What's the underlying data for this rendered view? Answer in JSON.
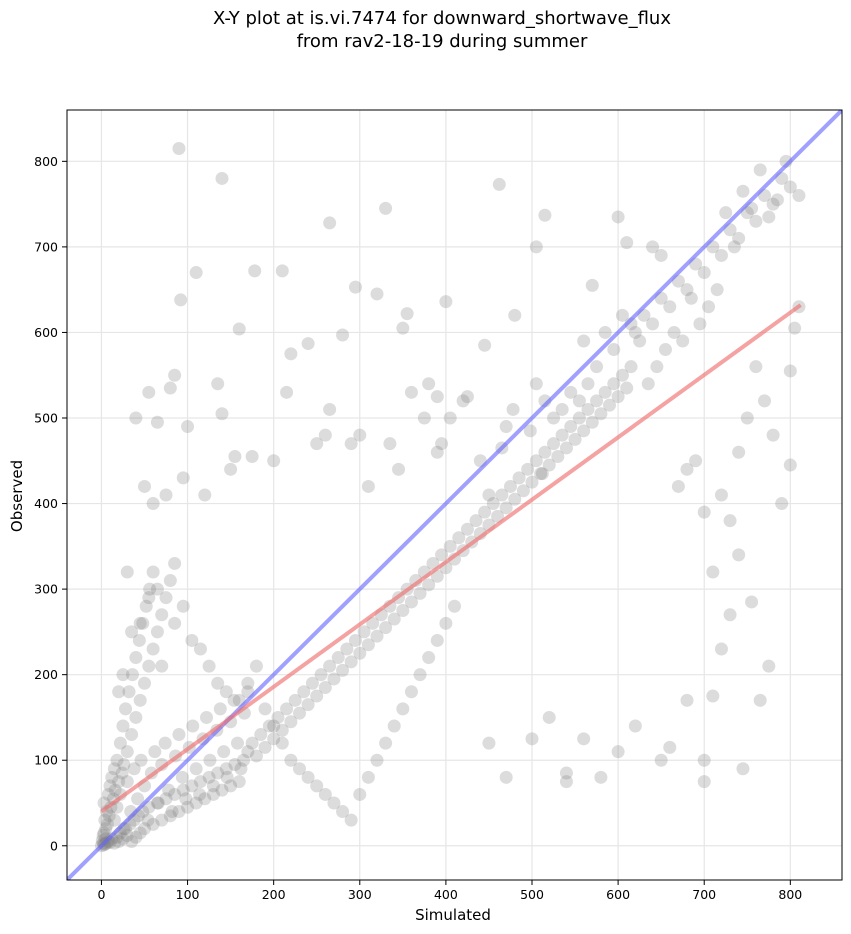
{
  "chart_data": {
    "type": "scatter",
    "title_lines": [
      "X-Y plot at is.vi.7474 for downward_shortwave_flux",
      "from rav2-18-19 during summer"
    ],
    "xlabel": "Simulated",
    "ylabel": "Observed",
    "xlim": [
      -40,
      860
    ],
    "ylim": [
      -40,
      860
    ],
    "xticks": [
      0,
      100,
      200,
      300,
      400,
      500,
      600,
      700,
      800
    ],
    "yticks": [
      0,
      100,
      200,
      300,
      400,
      500,
      600,
      700,
      800
    ],
    "grid": true,
    "point_color": "#808080",
    "one_to_one_line": {
      "x": [
        -40,
        860
      ],
      "y": [
        -40,
        860
      ],
      "color": "#6060ff"
    },
    "regression_line": {
      "x": [
        0,
        812
      ],
      "y": [
        40,
        632
      ],
      "color": "#f07070"
    },
    "points": [
      [
        0,
        0
      ],
      [
        2,
        3
      ],
      [
        3,
        1
      ],
      [
        1,
        6
      ],
      [
        4,
        2
      ],
      [
        5,
        8
      ],
      [
        6,
        3
      ],
      [
        2,
        12
      ],
      [
        8,
        5
      ],
      [
        3,
        15
      ],
      [
        10,
        4
      ],
      [
        5,
        20
      ],
      [
        12,
        8
      ],
      [
        7,
        25
      ],
      [
        15,
        3
      ],
      [
        4,
        30
      ],
      [
        18,
        10
      ],
      [
        9,
        35
      ],
      [
        20,
        5
      ],
      [
        6,
        40
      ],
      [
        22,
        15
      ],
      [
        11,
        45
      ],
      [
        25,
        8
      ],
      [
        3,
        50
      ],
      [
        28,
        20
      ],
      [
        14,
        55
      ],
      [
        30,
        12
      ],
      [
        8,
        60
      ],
      [
        33,
        25
      ],
      [
        16,
        65
      ],
      [
        35,
        5
      ],
      [
        10,
        70
      ],
      [
        38,
        30
      ],
      [
        20,
        75
      ],
      [
        40,
        10
      ],
      [
        12,
        80
      ],
      [
        43,
        35
      ],
      [
        24,
        85
      ],
      [
        45,
        15
      ],
      [
        15,
        90
      ],
      [
        48,
        40
      ],
      [
        26,
        95
      ],
      [
        50,
        20
      ],
      [
        18,
        100
      ],
      [
        55,
        45
      ],
      [
        30,
        110
      ],
      [
        60,
        25
      ],
      [
        22,
        120
      ],
      [
        65,
        50
      ],
      [
        35,
        130
      ],
      [
        70,
        30
      ],
      [
        25,
        140
      ],
      [
        75,
        55
      ],
      [
        40,
        150
      ],
      [
        80,
        35
      ],
      [
        28,
        160
      ],
      [
        85,
        60
      ],
      [
        45,
        170
      ],
      [
        90,
        40
      ],
      [
        32,
        180
      ],
      [
        95,
        65
      ],
      [
        50,
        190
      ],
      [
        100,
        45
      ],
      [
        36,
        200
      ],
      [
        105,
        70
      ],
      [
        55,
        210
      ],
      [
        110,
        50
      ],
      [
        40,
        220
      ],
      [
        115,
        75
      ],
      [
        60,
        230
      ],
      [
        120,
        55
      ],
      [
        44,
        240
      ],
      [
        125,
        80
      ],
      [
        65,
        250
      ],
      [
        130,
        60
      ],
      [
        48,
        260
      ],
      [
        135,
        85
      ],
      [
        70,
        270
      ],
      [
        140,
        65
      ],
      [
        52,
        280
      ],
      [
        145,
        90
      ],
      [
        75,
        290
      ],
      [
        150,
        70
      ],
      [
        56,
        300
      ],
      [
        155,
        95
      ],
      [
        80,
        310
      ],
      [
        160,
        75
      ],
      [
        60,
        320
      ],
      [
        165,
        100
      ],
      [
        85,
        330
      ],
      [
        170,
        110
      ],
      [
        175,
        120
      ],
      [
        180,
        105
      ],
      [
        185,
        130
      ],
      [
        190,
        115
      ],
      [
        195,
        140
      ],
      [
        200,
        125
      ],
      [
        205,
        150
      ],
      [
        210,
        135
      ],
      [
        215,
        160
      ],
      [
        220,
        145
      ],
      [
        225,
        170
      ],
      [
        230,
        155
      ],
      [
        235,
        180
      ],
      [
        240,
        165
      ],
      [
        245,
        190
      ],
      [
        250,
        175
      ],
      [
        255,
        200
      ],
      [
        260,
        185
      ],
      [
        265,
        210
      ],
      [
        270,
        195
      ],
      [
        275,
        220
      ],
      [
        280,
        205
      ],
      [
        285,
        230
      ],
      [
        290,
        215
      ],
      [
        295,
        240
      ],
      [
        300,
        225
      ],
      [
        305,
        250
      ],
      [
        310,
        235
      ],
      [
        315,
        260
      ],
      [
        320,
        245
      ],
      [
        325,
        270
      ],
      [
        330,
        255
      ],
      [
        335,
        280
      ],
      [
        340,
        265
      ],
      [
        345,
        290
      ],
      [
        350,
        275
      ],
      [
        355,
        300
      ],
      [
        360,
        285
      ],
      [
        365,
        310
      ],
      [
        370,
        295
      ],
      [
        375,
        320
      ],
      [
        380,
        305
      ],
      [
        385,
        330
      ],
      [
        390,
        315
      ],
      [
        395,
        340
      ],
      [
        400,
        325
      ],
      [
        405,
        350
      ],
      [
        410,
        335
      ],
      [
        415,
        360
      ],
      [
        420,
        345
      ],
      [
        425,
        370
      ],
      [
        430,
        355
      ],
      [
        435,
        380
      ],
      [
        440,
        365
      ],
      [
        445,
        390
      ],
      [
        450,
        375
      ],
      [
        455,
        400
      ],
      [
        460,
        385
      ],
      [
        465,
        410
      ],
      [
        470,
        395
      ],
      [
        475,
        420
      ],
      [
        480,
        405
      ],
      [
        485,
        430
      ],
      [
        490,
        415
      ],
      [
        495,
        440
      ],
      [
        500,
        425
      ],
      [
        505,
        450
      ],
      [
        510,
        435
      ],
      [
        515,
        460
      ],
      [
        520,
        445
      ],
      [
        525,
        470
      ],
      [
        530,
        455
      ],
      [
        535,
        480
      ],
      [
        540,
        465
      ],
      [
        545,
        490
      ],
      [
        550,
        475
      ],
      [
        555,
        500
      ],
      [
        560,
        485
      ],
      [
        565,
        510
      ],
      [
        570,
        495
      ],
      [
        575,
        520
      ],
      [
        580,
        505
      ],
      [
        585,
        530
      ],
      [
        590,
        515
      ],
      [
        595,
        540
      ],
      [
        600,
        525
      ],
      [
        605,
        550
      ],
      [
        610,
        535
      ],
      [
        615,
        560
      ],
      [
        620,
        600
      ],
      [
        630,
        620
      ],
      [
        640,
        610
      ],
      [
        650,
        640
      ],
      [
        660,
        630
      ],
      [
        670,
        660
      ],
      [
        680,
        650
      ],
      [
        690,
        680
      ],
      [
        700,
        670
      ],
      [
        710,
        700
      ],
      [
        720,
        690
      ],
      [
        730,
        720
      ],
      [
        740,
        710
      ],
      [
        750,
        740
      ],
      [
        760,
        730
      ],
      [
        770,
        760
      ],
      [
        780,
        750
      ],
      [
        790,
        780
      ],
      [
        800,
        770
      ],
      [
        810,
        760
      ],
      [
        765,
        790
      ],
      [
        795,
        800
      ],
      [
        755,
        745
      ],
      [
        785,
        755
      ],
      [
        775,
        735
      ],
      [
        745,
        765
      ],
      [
        735,
        700
      ],
      [
        725,
        740
      ],
      [
        715,
        650
      ],
      [
        705,
        630
      ],
      [
        695,
        610
      ],
      [
        685,
        640
      ],
      [
        675,
        590
      ],
      [
        665,
        600
      ],
      [
        655,
        580
      ],
      [
        645,
        560
      ],
      [
        635,
        540
      ],
      [
        625,
        590
      ],
      [
        615,
        610
      ],
      [
        605,
        620
      ],
      [
        595,
        580
      ],
      [
        585,
        600
      ],
      [
        575,
        560
      ],
      [
        565,
        540
      ],
      [
        555,
        520
      ],
      [
        545,
        530
      ],
      [
        535,
        510
      ],
      [
        525,
        500
      ],
      [
        515,
        520
      ],
      [
        505,
        540
      ],
      [
        90,
        815
      ],
      [
        140,
        780
      ],
      [
        265,
        728
      ],
      [
        330,
        745
      ],
      [
        462,
        773
      ],
      [
        515,
        737
      ],
      [
        600,
        735
      ],
      [
        110,
        670
      ],
      [
        178,
        672
      ],
      [
        210,
        672
      ],
      [
        295,
        653
      ],
      [
        320,
        645
      ],
      [
        92,
        638
      ],
      [
        160,
        604
      ],
      [
        355,
        622
      ],
      [
        400,
        636
      ],
      [
        280,
        597
      ],
      [
        240,
        587
      ],
      [
        350,
        605
      ],
      [
        445,
        585
      ],
      [
        505,
        700
      ],
      [
        560,
        590
      ],
      [
        570,
        655
      ],
      [
        610,
        705
      ],
      [
        640,
        700
      ],
      [
        650,
        690
      ],
      [
        480,
        620
      ],
      [
        420,
        520
      ],
      [
        405,
        500
      ],
      [
        390,
        525
      ],
      [
        380,
        540
      ],
      [
        40,
        500
      ],
      [
        65,
        495
      ],
      [
        55,
        530
      ],
      [
        80,
        535
      ],
      [
        85,
        550
      ],
      [
        75,
        410
      ],
      [
        60,
        400
      ],
      [
        30,
        320
      ],
      [
        50,
        420
      ],
      [
        95,
        430
      ],
      [
        100,
        490
      ],
      [
        120,
        410
      ],
      [
        135,
        540
      ],
      [
        140,
        505
      ],
      [
        155,
        455
      ],
      [
        175,
        455
      ],
      [
        150,
        440
      ],
      [
        200,
        450
      ],
      [
        215,
        530
      ],
      [
        220,
        575
      ],
      [
        250,
        470
      ],
      [
        260,
        480
      ],
      [
        265,
        510
      ],
      [
        290,
        470
      ],
      [
        300,
        480
      ],
      [
        310,
        420
      ],
      [
        335,
        470
      ],
      [
        345,
        440
      ],
      [
        360,
        530
      ],
      [
        375,
        500
      ],
      [
        390,
        460
      ],
      [
        395,
        470
      ],
      [
        425,
        525
      ],
      [
        440,
        450
      ],
      [
        450,
        410
      ],
      [
        465,
        465
      ],
      [
        470,
        490
      ],
      [
        478,
        510
      ],
      [
        498,
        485
      ],
      [
        512,
        435
      ],
      [
        700,
        100
      ],
      [
        720,
        230
      ],
      [
        745,
        90
      ],
      [
        775,
        210
      ],
      [
        710,
        175
      ],
      [
        680,
        170
      ],
      [
        600,
        110
      ],
      [
        660,
        115
      ],
      [
        560,
        125
      ],
      [
        540,
        75
      ],
      [
        540,
        85
      ],
      [
        580,
        80
      ],
      [
        470,
        80
      ],
      [
        450,
        120
      ],
      [
        500,
        125
      ],
      [
        520,
        150
      ],
      [
        620,
        140
      ],
      [
        650,
        100
      ],
      [
        700,
        75
      ],
      [
        730,
        270
      ],
      [
        740,
        340
      ],
      [
        755,
        285
      ],
      [
        765,
        170
      ],
      [
        790,
        400
      ],
      [
        800,
        445
      ],
      [
        800,
        555
      ],
      [
        805,
        605
      ],
      [
        810,
        630
      ],
      [
        780,
        480
      ],
      [
        770,
        520
      ],
      [
        760,
        560
      ],
      [
        750,
        500
      ],
      [
        740,
        460
      ],
      [
        730,
        380
      ],
      [
        720,
        410
      ],
      [
        710,
        320
      ],
      [
        700,
        390
      ],
      [
        690,
        450
      ],
      [
        680,
        440
      ],
      [
        670,
        420
      ],
      [
        20,
        180
      ],
      [
        25,
        200
      ],
      [
        35,
        250
      ],
      [
        45,
        260
      ],
      [
        55,
        290
      ],
      [
        65,
        300
      ],
      [
        70,
        210
      ],
      [
        85,
        260
      ],
      [
        95,
        280
      ],
      [
        105,
        240
      ],
      [
        115,
        230
      ],
      [
        125,
        210
      ],
      [
        135,
        190
      ],
      [
        145,
        180
      ],
      [
        160,
        170
      ],
      [
        170,
        190
      ],
      [
        180,
        210
      ],
      [
        190,
        160
      ],
      [
        200,
        140
      ],
      [
        210,
        120
      ],
      [
        220,
        100
      ],
      [
        230,
        90
      ],
      [
        240,
        80
      ],
      [
        250,
        70
      ],
      [
        260,
        60
      ],
      [
        270,
        50
      ],
      [
        280,
        40
      ],
      [
        290,
        30
      ],
      [
        300,
        60
      ],
      [
        310,
        80
      ],
      [
        320,
        100
      ],
      [
        330,
        120
      ],
      [
        340,
        140
      ],
      [
        350,
        160
      ],
      [
        360,
        180
      ],
      [
        370,
        200
      ],
      [
        380,
        220
      ],
      [
        390,
        240
      ],
      [
        400,
        260
      ],
      [
        410,
        280
      ],
      [
        15,
        30
      ],
      [
        18,
        45
      ],
      [
        22,
        60
      ],
      [
        26,
        20
      ],
      [
        30,
        75
      ],
      [
        34,
        40
      ],
      [
        38,
        90
      ],
      [
        42,
        55
      ],
      [
        46,
        100
      ],
      [
        50,
        70
      ],
      [
        54,
        30
      ],
      [
        58,
        85
      ],
      [
        62,
        110
      ],
      [
        66,
        50
      ],
      [
        70,
        95
      ],
      [
        74,
        120
      ],
      [
        78,
        65
      ],
      [
        82,
        40
      ],
      [
        86,
        105
      ],
      [
        90,
        130
      ],
      [
        94,
        80
      ],
      [
        98,
        55
      ],
      [
        102,
        115
      ],
      [
        106,
        140
      ],
      [
        110,
        90
      ],
      [
        114,
        60
      ],
      [
        118,
        125
      ],
      [
        122,
        150
      ],
      [
        126,
        100
      ],
      [
        130,
        70
      ],
      [
        134,
        135
      ],
      [
        138,
        160
      ],
      [
        142,
        110
      ],
      [
        146,
        80
      ],
      [
        150,
        145
      ],
      [
        154,
        170
      ],
      [
        158,
        120
      ],
      [
        162,
        90
      ],
      [
        166,
        155
      ],
      [
        170,
        180
      ]
    ]
  }
}
